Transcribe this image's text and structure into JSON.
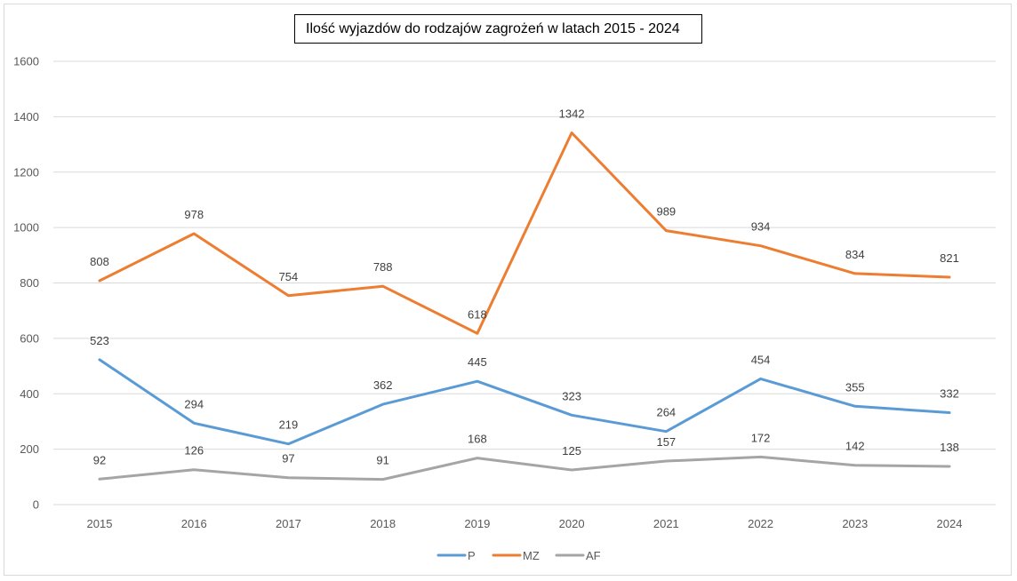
{
  "chart_data": {
    "type": "line",
    "title": "Ilość wyjazdów do rodzajów zagrożeń w latach 2015 - 2024",
    "xlabel": "",
    "ylabel": "",
    "categories": [
      "2015",
      "2016",
      "2017",
      "2018",
      "2019",
      "2020",
      "2021",
      "2022",
      "2023",
      "2024"
    ],
    "ylim": [
      0,
      1600
    ],
    "yticks": [
      0,
      200,
      400,
      600,
      800,
      1000,
      1200,
      1400,
      1600
    ],
    "grid": true,
    "legend_position": "bottom",
    "data_labels": true,
    "series": [
      {
        "name": "P",
        "color": "#5B9BD5",
        "values": [
          523,
          294,
          219,
          362,
          445,
          323,
          264,
          454,
          355,
          332
        ]
      },
      {
        "name": "MZ",
        "color": "#ED7D31",
        "values": [
          808,
          978,
          754,
          788,
          618,
          1342,
          989,
          934,
          834,
          821
        ]
      },
      {
        "name": "AF",
        "color": "#A5A5A5",
        "values": [
          92,
          126,
          97,
          91,
          168,
          125,
          157,
          172,
          142,
          138
        ]
      }
    ]
  }
}
